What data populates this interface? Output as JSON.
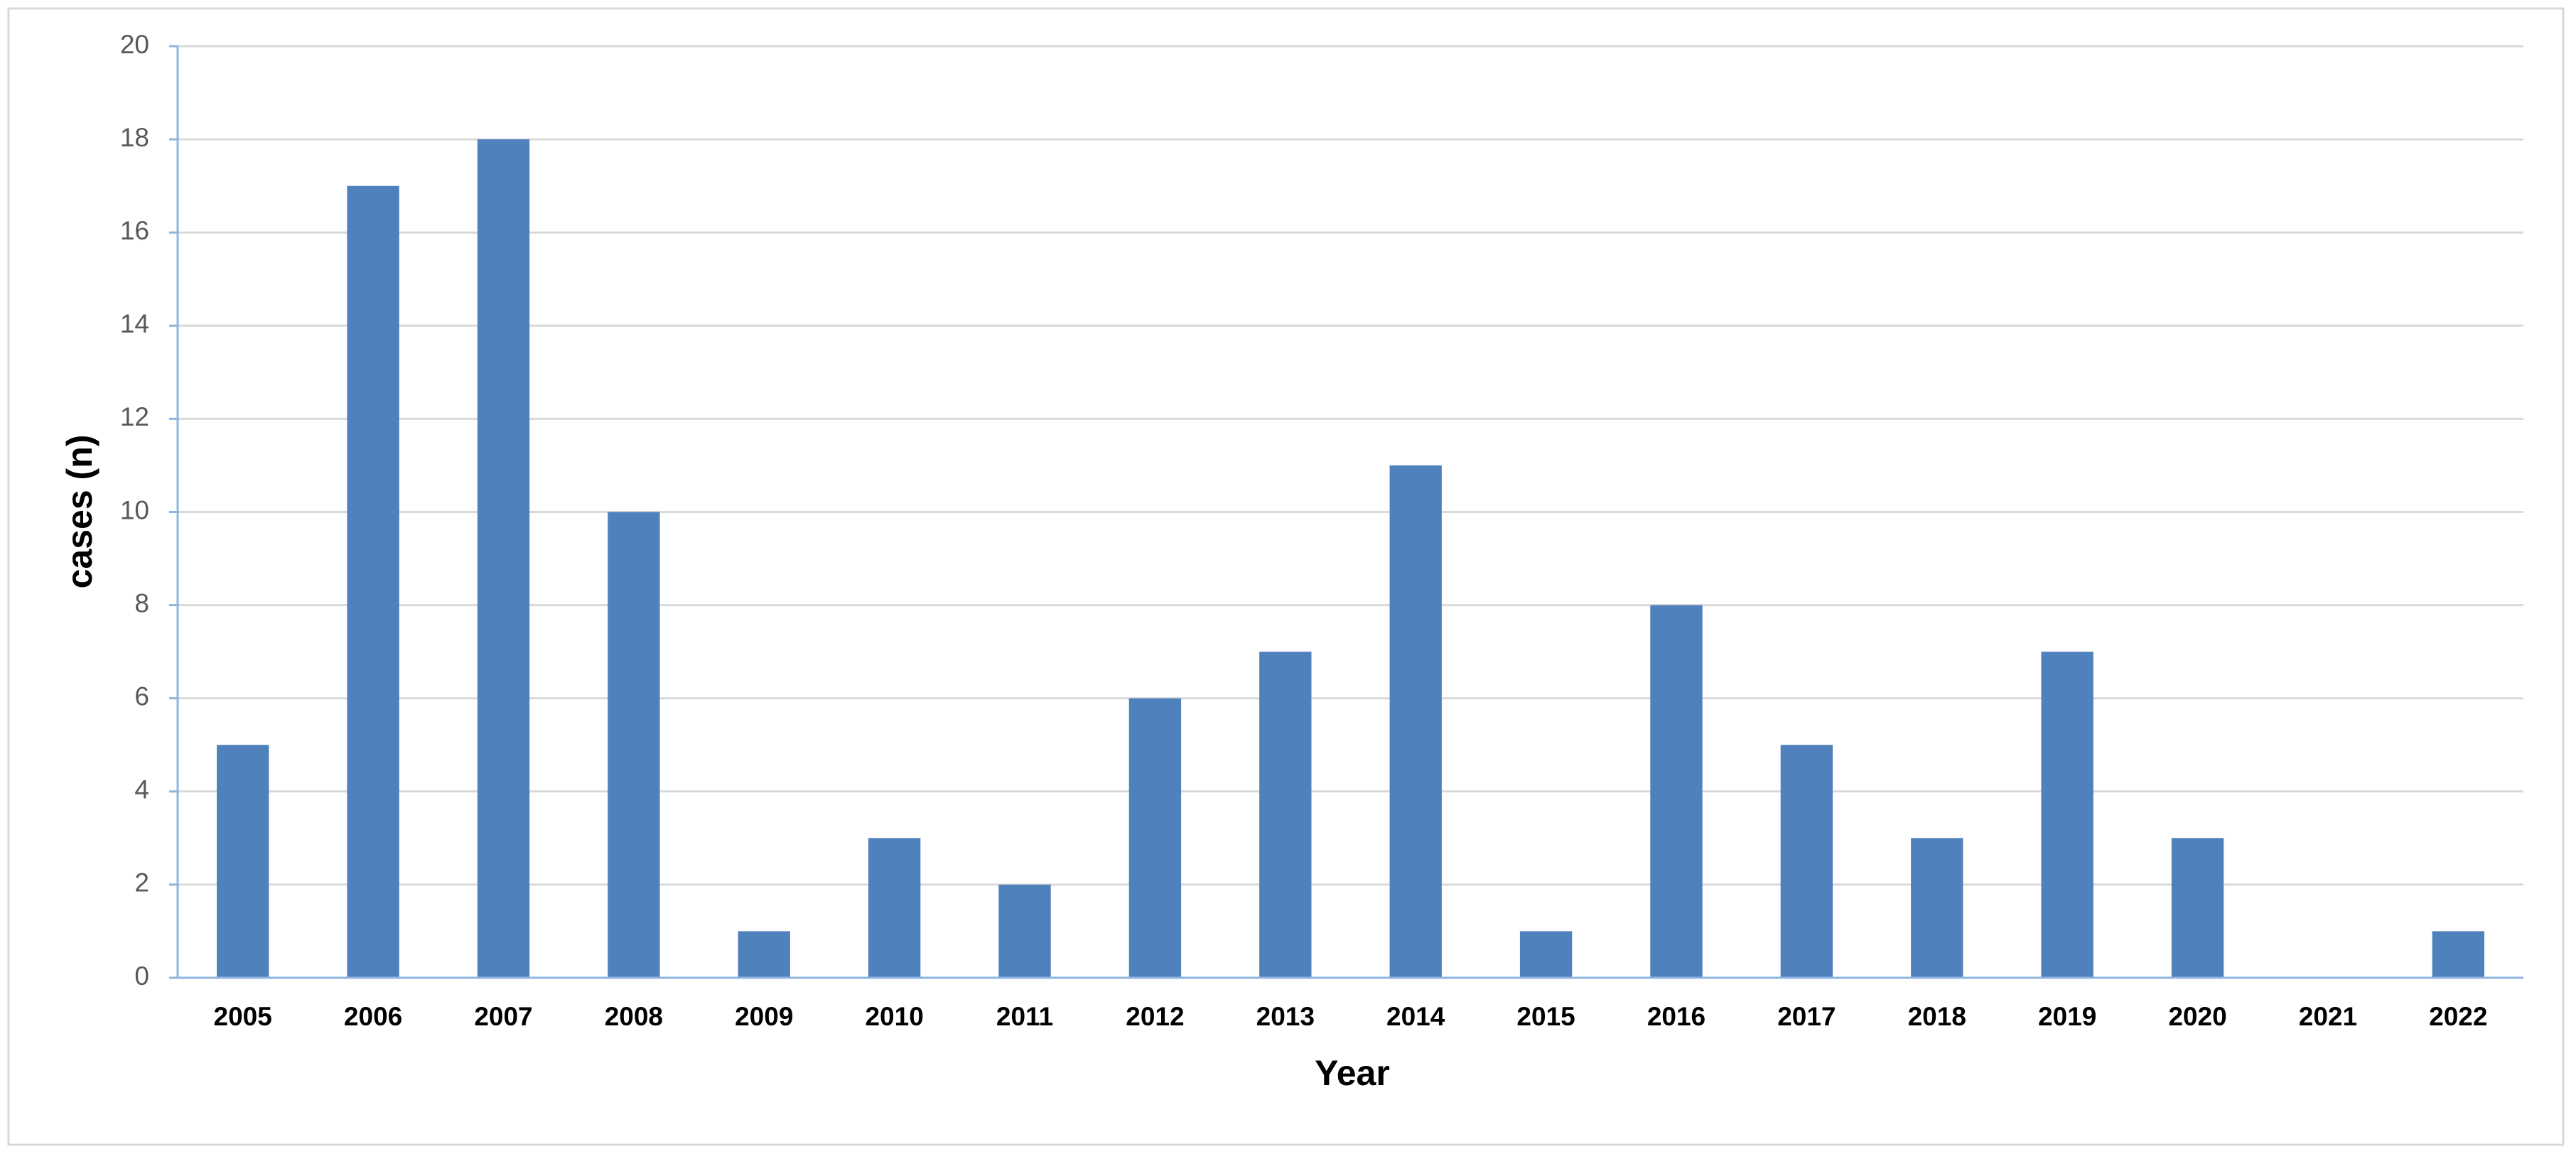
{
  "chart_data": {
    "type": "bar",
    "x_label": "Year",
    "y_label": "cases (n)",
    "categories": [
      "2005",
      "2006",
      "2007",
      "2008",
      "2009",
      "2010",
      "2011",
      "2012",
      "2013",
      "2014",
      "2015",
      "2016",
      "2017",
      "2018",
      "2019",
      "2020",
      "2021",
      "2022"
    ],
    "values": [
      5,
      17,
      18,
      10,
      1,
      3,
      2,
      6,
      7,
      11,
      1,
      8,
      5,
      3,
      7,
      3,
      0,
      1
    ],
    "color": "#4f81bd",
    "ylim": [
      0,
      20
    ],
    "yticks": [
      0,
      2,
      4,
      6,
      8,
      10,
      12,
      14,
      16,
      18,
      20
    ],
    "grid": true
  }
}
